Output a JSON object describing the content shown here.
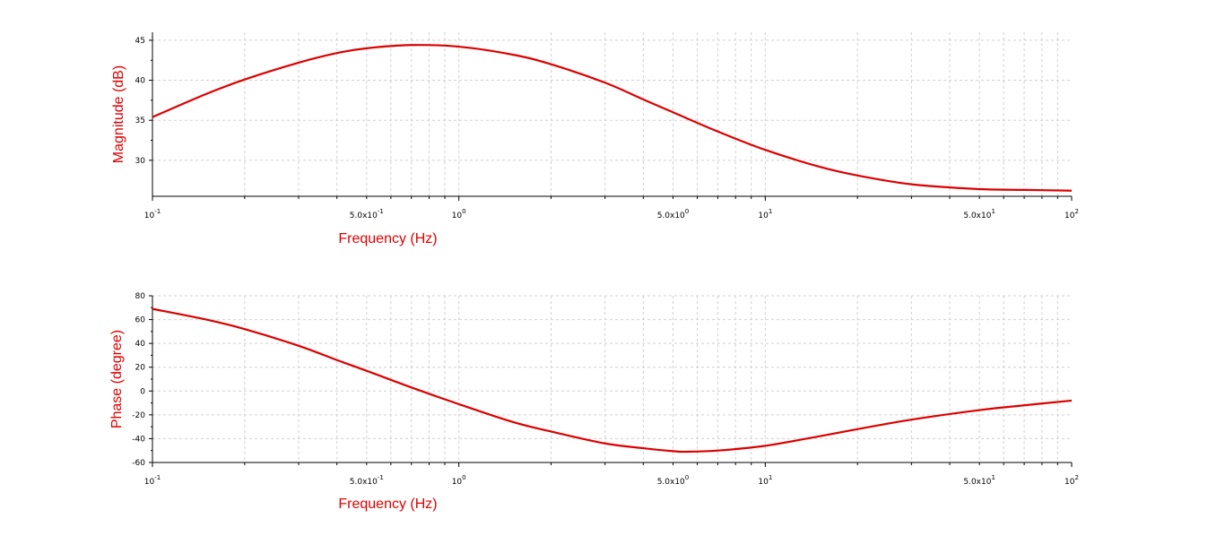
{
  "colors": {
    "curve": "#dd0000",
    "axis_title": "#e00000",
    "grid": "#d0d0d0",
    "background": "#ffffff"
  },
  "chart_data": [
    {
      "type": "line",
      "xlabel": "Frequency (Hz)",
      "ylabel": "Magnitude (dB)",
      "x_scale": "log",
      "xlim": [
        0.1,
        100
      ],
      "ylim": [
        25.5,
        46
      ],
      "grid": true,
      "x_tick_labels": [
        {
          "x": 0.1,
          "base": "10",
          "exp": "-1"
        },
        {
          "x": 0.5,
          "base": "5.0x10",
          "exp": "-1"
        },
        {
          "x": 1,
          "base": "10",
          "exp": "0"
        },
        {
          "x": 5,
          "base": "5.0x10",
          "exp": "0"
        },
        {
          "x": 10,
          "base": "10",
          "exp": "1"
        },
        {
          "x": 50,
          "base": "5.0x10",
          "exp": "1"
        },
        {
          "x": 100,
          "base": "10",
          "exp": "2"
        }
      ],
      "y_ticks": [
        30,
        35,
        40,
        45
      ],
      "series": [
        {
          "x": [
            0.1,
            0.15,
            0.2,
            0.3,
            0.4,
            0.5,
            0.7,
            1,
            1.5,
            2,
            3,
            4,
            5,
            7,
            10,
            15,
            20,
            30,
            50,
            70,
            100
          ],
          "y": [
            35.4,
            38.3,
            40.1,
            42.2,
            43.4,
            44.0,
            44.4,
            44.2,
            43.2,
            42.0,
            39.7,
            37.6,
            36.0,
            33.6,
            31.3,
            29.2,
            28.1,
            27.0,
            26.4,
            26.3,
            26.2
          ]
        }
      ]
    },
    {
      "type": "line",
      "xlabel": "Frequency (Hz)",
      "ylabel": "Phase (degree)",
      "x_scale": "log",
      "xlim": [
        0.1,
        100
      ],
      "ylim": [
        -60,
        80
      ],
      "grid": true,
      "x_tick_labels": [
        {
          "x": 0.1,
          "base": "10",
          "exp": "-1"
        },
        {
          "x": 0.5,
          "base": "5.0x10",
          "exp": "-1"
        },
        {
          "x": 1,
          "base": "10",
          "exp": "0"
        },
        {
          "x": 5,
          "base": "5.0x10",
          "exp": "0"
        },
        {
          "x": 10,
          "base": "10",
          "exp": "1"
        },
        {
          "x": 50,
          "base": "5.0x10",
          "exp": "1"
        },
        {
          "x": 100,
          "base": "10",
          "exp": "2"
        }
      ],
      "y_ticks": [
        -60,
        -40,
        -20,
        0,
        20,
        40,
        60,
        80
      ],
      "series": [
        {
          "x": [
            0.1,
            0.15,
            0.2,
            0.3,
            0.4,
            0.5,
            0.7,
            1,
            1.5,
            2,
            3,
            4,
            5,
            5.5,
            7,
            10,
            15,
            20,
            30,
            50,
            70,
            100
          ],
          "y": [
            69,
            60,
            52,
            38,
            26,
            17,
            3,
            -11,
            -26,
            -34,
            -44,
            -48,
            -50.5,
            -51,
            -50,
            -46,
            -38,
            -32,
            -24,
            -16,
            -12,
            -8
          ]
        }
      ]
    }
  ]
}
